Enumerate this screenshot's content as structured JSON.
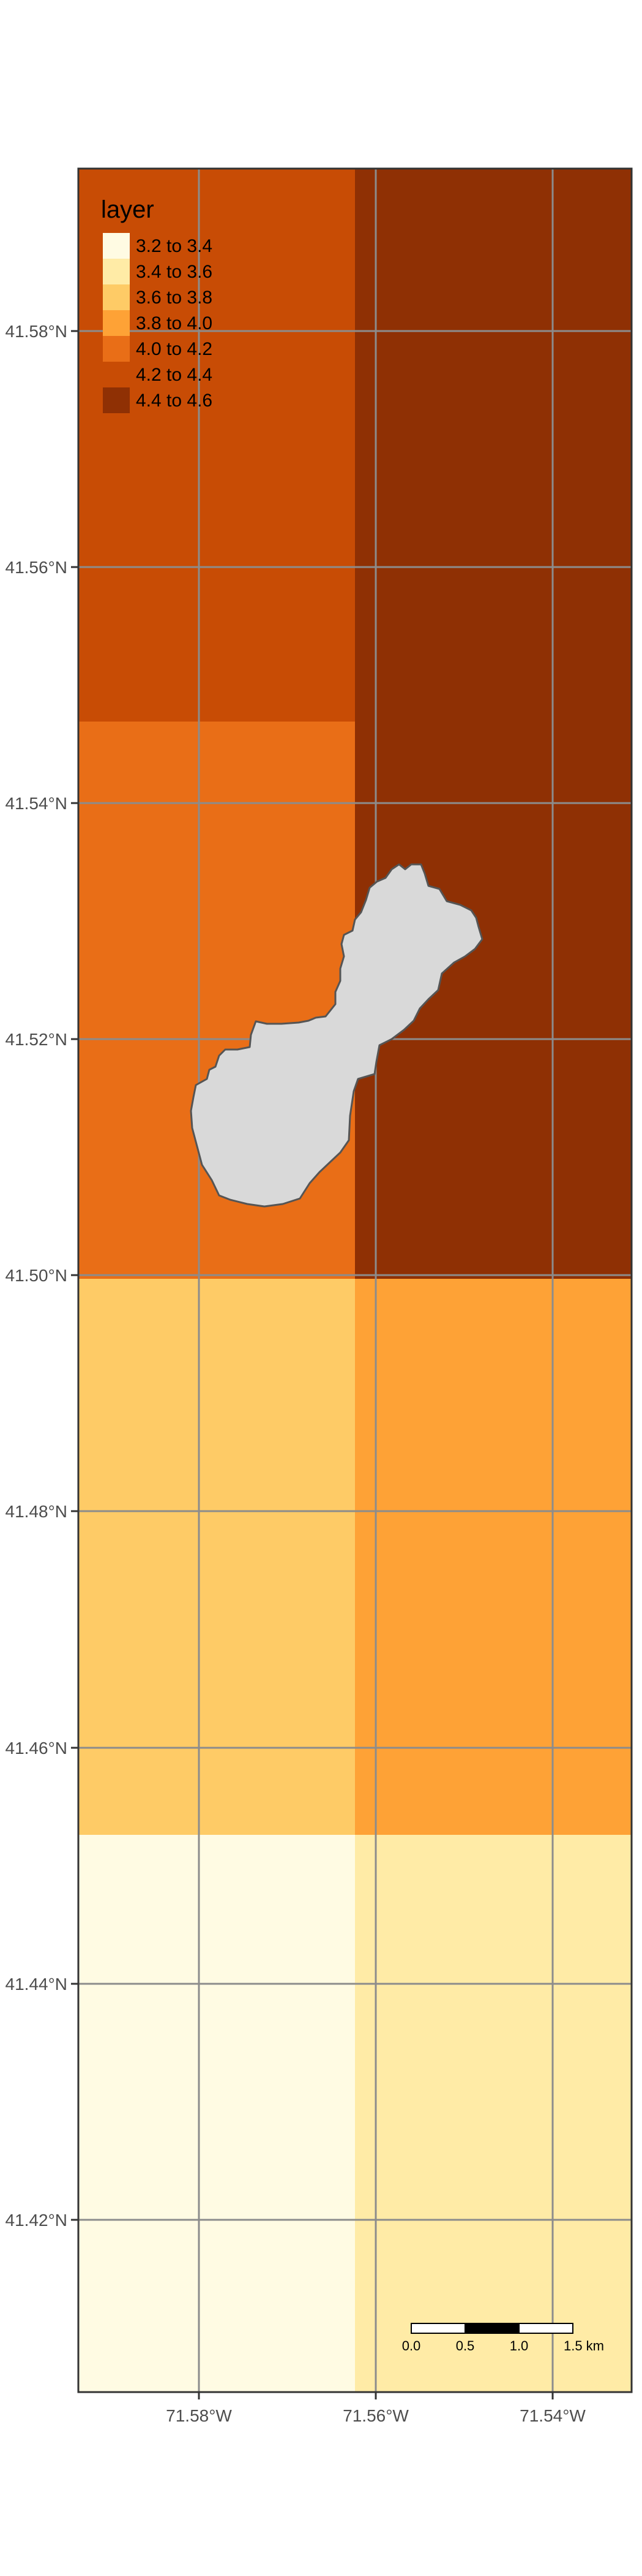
{
  "legend": {
    "title": "layer",
    "items": [
      {
        "label": "3.2 to 3.4",
        "color": "#FFFBE3"
      },
      {
        "label": "3.4 to 3.6",
        "color": "#FFEBA6"
      },
      {
        "label": "3.6 to 3.8",
        "color": "#FECB66"
      },
      {
        "label": "3.8 to 4.0",
        "color": "#FEA236"
      },
      {
        "label": "4.0 to 4.2",
        "color": "#E96E17"
      },
      {
        "label": "4.2 to 4.4",
        "color": "#C84C05"
      },
      {
        "label": "4.4 to 4.6",
        "color": "#8F3004"
      }
    ]
  },
  "axes": {
    "lat_labels": [
      "41.58°N",
      "41.56°N",
      "41.54°N",
      "41.52°N",
      "41.50°N",
      "41.48°N",
      "41.46°N",
      "41.44°N",
      "41.42°N"
    ],
    "lon_labels": [
      "71.58°W",
      "71.56°W",
      "71.54°W"
    ]
  },
  "scale_bar": {
    "ticks": [
      "0.0",
      "0.5",
      "1.0",
      "1.5 km"
    ]
  },
  "colors": {
    "grid": "#8c8c8c",
    "lake_fill": "#d9d9d9",
    "lake_stroke": "#555555",
    "panel_border": "#333333"
  },
  "raster": [
    {
      "row": 1,
      "west": "4.2 to 4.4",
      "east": "4.4 to 4.6"
    },
    {
      "row": 2,
      "west": "4.0 to 4.2",
      "east": "4.4 to 4.6"
    },
    {
      "row": 3,
      "west": "3.6 to 3.8",
      "east": "3.8 to 4.0"
    },
    {
      "row": 4,
      "west": "3.2 to 3.4",
      "east": "3.4 to 3.6"
    }
  ]
}
